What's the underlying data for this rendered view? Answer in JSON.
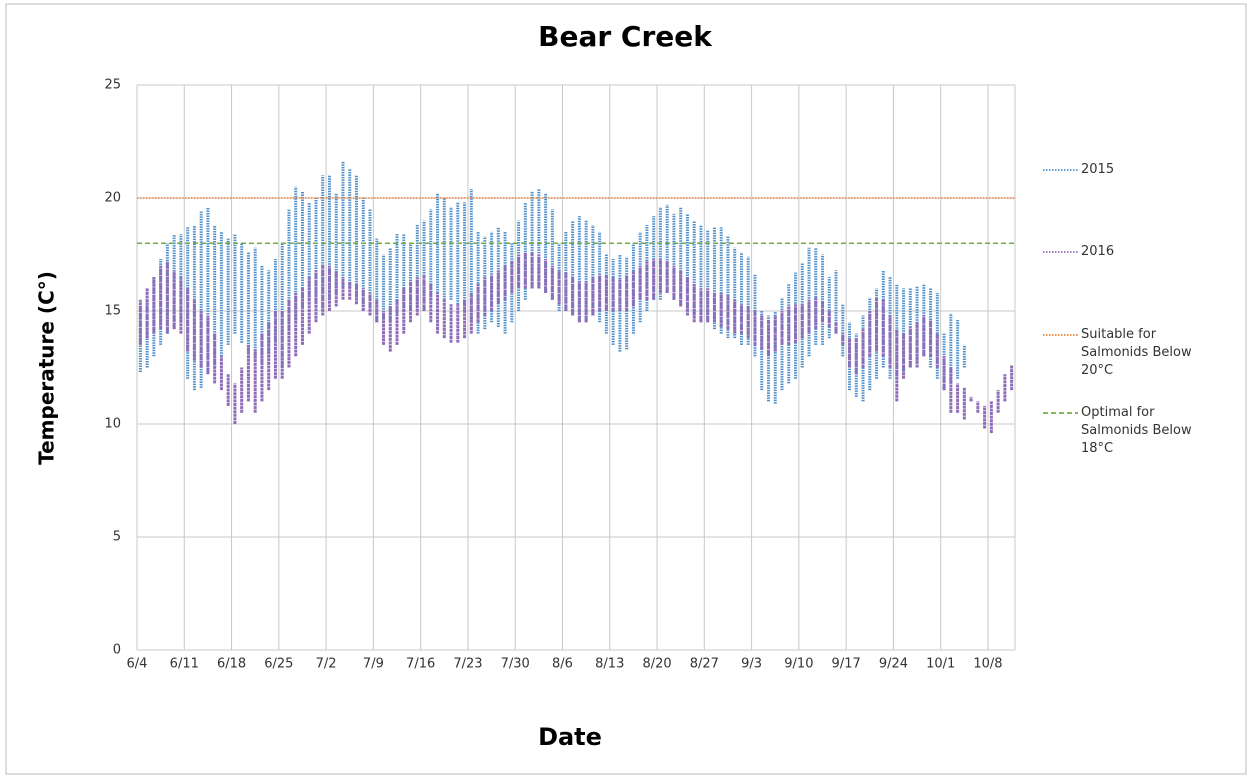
{
  "chart_data": {
    "type": "range",
    "title": "Bear Creek",
    "x_label": "Date",
    "y_label": "Temperature (C°)",
    "categories": [
      "6/4",
      null,
      null,
      null,
      null,
      null,
      null,
      "6/11",
      null,
      null,
      null,
      null,
      null,
      null,
      "6/18",
      null,
      null,
      null,
      null,
      null,
      null,
      "6/25",
      null,
      null,
      null,
      null,
      null,
      null,
      "7/2",
      null,
      null,
      null,
      null,
      null,
      null,
      "7/9",
      null,
      null,
      null,
      null,
      null,
      null,
      "7/16",
      null,
      null,
      null,
      null,
      null,
      null,
      "7/23",
      null,
      null,
      null,
      null,
      null,
      null,
      "7/30",
      null,
      null,
      null,
      null,
      null,
      null,
      "8/6",
      null,
      null,
      null,
      null,
      null,
      null,
      "8/13",
      null,
      null,
      null,
      null,
      null,
      null,
      "8/20",
      null,
      null,
      null,
      null,
      null,
      null,
      "8/27",
      null,
      null,
      null,
      null,
      null,
      null,
      "9/3",
      null,
      null,
      null,
      null,
      null,
      null,
      "9/10",
      null,
      null,
      null,
      null,
      null,
      null,
      "9/17",
      null,
      null,
      null,
      null,
      null,
      null,
      "9/24",
      null,
      null,
      null,
      null,
      null,
      null,
      "10/1",
      null,
      null,
      null,
      null,
      null,
      null,
      "10/8",
      null,
      null,
      null
    ],
    "series": [
      {
        "name": "2015",
        "color": "#4f8fc9",
        "low": [
          12.3,
          12.5,
          13.0,
          13.5,
          14.0,
          14.2,
          14.5,
          12.0,
          11.5,
          11.6,
          12.3,
          12.5,
          13.0,
          13.5,
          14.0,
          13.6,
          13.2,
          12.8,
          12.5,
          13.0,
          13.5,
          12.5,
          14.0,
          14.5,
          15.0,
          15.5,
          15.2,
          15.0,
          15.5,
          15.8,
          16.0,
          16.0,
          15.5,
          15.2,
          15.0,
          14.5,
          14.5,
          14.6,
          14.8,
          15.0,
          15.0,
          15.2,
          15.0,
          15.5,
          15.8,
          15.5,
          15.5,
          15.3,
          15.0,
          14.5,
          14.0,
          14.2,
          14.5,
          14.3,
          14.0,
          14.5,
          15.0,
          15.5,
          16.0,
          16.0,
          15.8,
          15.5,
          15.0,
          15.0,
          14.8,
          14.5,
          14.5,
          14.8,
          14.5,
          14.0,
          13.5,
          13.2,
          13.3,
          14.0,
          14.5,
          15.0,
          15.5,
          15.5,
          15.8,
          15.5,
          15.3,
          15.0,
          14.8,
          14.5,
          14.5,
          14.2,
          14.0,
          13.8,
          13.8,
          13.5,
          13.5,
          13.0,
          11.5,
          11.0,
          10.9,
          11.5,
          11.8,
          12.0,
          12.5,
          13.0,
          13.5,
          13.5,
          13.8,
          14.0,
          13.0,
          11.5,
          11.2,
          11.0,
          11.5,
          12.0,
          12.5,
          12.0,
          12.0,
          12.2,
          12.5,
          12.8,
          13.0,
          12.5,
          12.0,
          11.5,
          11.8,
          12.0,
          12.5,
          null,
          null,
          null,
          null,
          null,
          null,
          null
        ],
        "high": [
          15.2,
          15.5,
          16.5,
          17.3,
          18.0,
          18.4,
          18.4,
          18.7,
          18.8,
          19.4,
          19.6,
          18.8,
          18.5,
          18.2,
          18.4,
          18.0,
          17.6,
          17.8,
          17.0,
          16.8,
          17.3,
          18.0,
          19.5,
          20.5,
          20.3,
          19.8,
          20.0,
          21.0,
          21.0,
          20.2,
          21.6,
          21.3,
          21.0,
          20.0,
          19.5,
          18.2,
          17.5,
          17.8,
          18.4,
          18.4,
          18.0,
          18.8,
          19.0,
          19.5,
          20.2,
          20.0,
          19.6,
          19.8,
          19.8,
          20.4,
          18.5,
          18.3,
          18.5,
          18.7,
          18.5,
          18.0,
          19.0,
          19.8,
          20.3,
          20.4,
          20.2,
          19.5,
          18.0,
          18.5,
          19.0,
          19.2,
          19.0,
          18.8,
          18.5,
          17.5,
          17.3,
          17.5,
          17.4,
          18.0,
          18.5,
          18.8,
          19.2,
          19.6,
          19.7,
          19.3,
          19.6,
          19.3,
          19.0,
          18.8,
          18.6,
          18.7,
          18.7,
          18.3,
          17.8,
          17.6,
          17.4,
          16.6,
          15.0,
          14.8,
          15.0,
          15.6,
          16.2,
          16.7,
          17.1,
          17.8,
          17.8,
          17.5,
          16.5,
          16.8,
          15.3,
          14.5,
          14.0,
          14.8,
          15.6,
          16.0,
          16.8,
          16.5,
          16.2,
          16.0,
          16.0,
          16.1,
          16.2,
          16.0,
          15.8,
          14.0,
          14.9,
          14.6,
          13.5,
          null,
          null,
          null,
          null,
          null,
          null,
          null
        ]
      },
      {
        "name": "2016",
        "color": "#8f6bb8",
        "low": [
          13.5,
          13.8,
          14.0,
          14.2,
          14.0,
          14.2,
          14.0,
          13.2,
          12.8,
          12.5,
          12.2,
          11.8,
          11.5,
          10.8,
          10.0,
          10.5,
          11.0,
          10.5,
          11.0,
          11.5,
          12.0,
          12.0,
          12.5,
          13.0,
          13.5,
          14.0,
          14.5,
          14.8,
          15.0,
          15.2,
          15.5,
          15.5,
          15.3,
          15.0,
          14.8,
          14.5,
          13.5,
          13.2,
          13.5,
          14.0,
          14.5,
          14.8,
          15.0,
          14.5,
          14.0,
          13.8,
          13.6,
          13.6,
          13.8,
          14.0,
          14.5,
          14.8,
          15.0,
          15.3,
          15.5,
          15.8,
          16.0,
          16.0,
          16.0,
          16.0,
          15.8,
          15.5,
          15.3,
          15.0,
          14.8,
          14.5,
          14.5,
          14.8,
          15.0,
          15.0,
          15.0,
          15.0,
          15.0,
          15.2,
          15.5,
          15.5,
          15.5,
          15.8,
          15.8,
          15.5,
          15.2,
          14.8,
          14.5,
          14.5,
          14.5,
          14.5,
          14.3,
          14.2,
          14.0,
          14.0,
          13.8,
          13.5,
          13.3,
          13.0,
          13.2,
          13.5,
          13.5,
          13.6,
          13.8,
          14.0,
          14.2,
          14.5,
          14.3,
          14.0,
          13.5,
          12.5,
          12.2,
          12.5,
          13.0,
          13.2,
          13.0,
          12.5,
          11.0,
          12.0,
          12.5,
          12.5,
          13.0,
          13.0,
          12.5,
          11.5,
          10.5,
          10.5,
          10.2,
          11.0,
          10.5,
          9.8,
          9.6,
          10.5,
          11.0,
          11.5
        ],
        "high": [
          15.5,
          16.0,
          16.5,
          17.0,
          17.2,
          16.8,
          16.5,
          16.0,
          15.5,
          15.0,
          14.8,
          14.0,
          13.0,
          12.2,
          11.8,
          12.5,
          13.5,
          13.3,
          14.0,
          14.5,
          15.0,
          15.0,
          15.5,
          15.8,
          16.0,
          16.5,
          16.8,
          17.0,
          17.0,
          16.8,
          16.5,
          16.3,
          16.2,
          16.0,
          15.8,
          15.5,
          15.0,
          15.2,
          15.5,
          16.0,
          16.3,
          16.5,
          16.6,
          16.2,
          15.8,
          15.5,
          15.3,
          15.3,
          15.5,
          15.8,
          16.2,
          16.5,
          16.6,
          16.8,
          17.0,
          17.2,
          17.5,
          17.6,
          17.6,
          17.5,
          17.3,
          17.0,
          16.8,
          16.7,
          16.5,
          16.3,
          16.3,
          16.5,
          16.6,
          16.6,
          16.5,
          16.4,
          16.6,
          16.8,
          17.0,
          17.2,
          17.3,
          17.3,
          17.2,
          17.0,
          16.8,
          16.5,
          16.2,
          16.0,
          16.0,
          15.8,
          15.8,
          15.7,
          15.5,
          15.3,
          15.2,
          15.0,
          14.8,
          14.6,
          14.8,
          15.0,
          15.2,
          15.3,
          15.3,
          15.5,
          15.6,
          15.4,
          15.0,
          14.5,
          14.0,
          13.8,
          13.8,
          14.2,
          15.0,
          15.6,
          15.5,
          14.8,
          14.2,
          14.0,
          14.3,
          14.5,
          14.8,
          14.6,
          14.0,
          13.0,
          12.5,
          11.8,
          11.6,
          11.2,
          11.0,
          10.8,
          11.0,
          11.5,
          12.2,
          12.6
        ]
      }
    ],
    "reference_lines": [
      {
        "name": "Suitable for Salmonids Below 20°C",
        "value": 20,
        "color": "#ed7d31",
        "style": "dotted"
      },
      {
        "name": "Optimal for Salmonids Below 18°C",
        "value": 18,
        "color": "#70ad47",
        "style": "dashed"
      }
    ],
    "ylim": [
      0,
      25
    ],
    "yticks": [
      0,
      5,
      10,
      15,
      20,
      25
    ],
    "grid": true,
    "legend": "right"
  }
}
